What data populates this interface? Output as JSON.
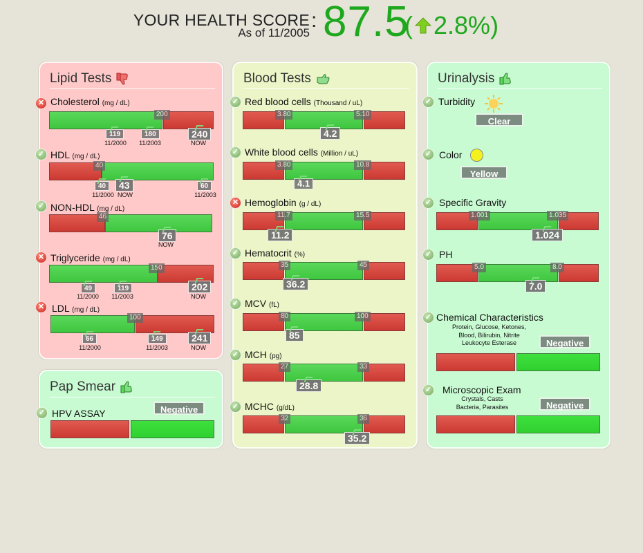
{
  "header": {
    "title": "YOUR HEALTH SCORE",
    "as_of": "As of 11/2005",
    "colon": ":",
    "score": "87.5",
    "change_open": "(",
    "change": "2.8%",
    "change_close": ")",
    "change_direction_icon": "up-arrow-icon"
  },
  "colors": {
    "accent": "#1ea81e",
    "range_ok": "#46ca46",
    "range_bad": "#d4453d",
    "panel_red": "#ffc9c9",
    "panel_yellow": "#ecf5c8",
    "panel_green": "#c9fbd3"
  },
  "lipid": {
    "title": "Lipid Tests",
    "icon": "thumbs-down-icon",
    "tests": [
      {
        "name": "Cholesterol",
        "unit": "(mg / dL)",
        "status": "bad",
        "threshold": "200",
        "values": [
          {
            "v": "119",
            "date": "11/2000"
          },
          {
            "v": "180",
            "date": "11/2003"
          },
          {
            "v": "240",
            "date": "NOW"
          }
        ]
      },
      {
        "name": "HDL",
        "unit": "(mg / dL)",
        "status": "ok",
        "threshold": "40",
        "values": [
          {
            "v": "40",
            "date": "11/2000"
          },
          {
            "v": "43",
            "date": "NOW"
          },
          {
            "v": "60",
            "date": "11/2003"
          }
        ]
      },
      {
        "name": "NON-HDL",
        "unit": "(mg / dL)",
        "status": "ok",
        "threshold": "46",
        "values": [
          {
            "v": "76",
            "date": "NOW"
          }
        ]
      },
      {
        "name": "Triglyceride",
        "unit": "(mg / dL)",
        "status": "bad",
        "threshold": "150",
        "values": [
          {
            "v": "49",
            "date": "11/2000"
          },
          {
            "v": "119",
            "date": "11/2003"
          },
          {
            "v": "202",
            "date": "NOW"
          }
        ]
      },
      {
        "name": "LDL",
        "unit": "(mg / dL)",
        "status": "bad",
        "threshold": "100",
        "values": [
          {
            "v": "66",
            "date": "11/2000"
          },
          {
            "v": "149",
            "date": "11/2003"
          },
          {
            "v": "241",
            "date": "NOW"
          }
        ]
      }
    ]
  },
  "pap": {
    "title": "Pap Smear",
    "icon": "thumbs-up-icon",
    "tests": [
      {
        "name": "HPV ASSAY",
        "status": "ok",
        "result": "Negative"
      }
    ]
  },
  "blood": {
    "title": "Blood Tests",
    "icon": "thumbs-sideways-icon",
    "tests": [
      {
        "name": "Red blood cells",
        "unit": "(Thousand / uL)",
        "status": "ok",
        "low": "3.80",
        "high": "5.10",
        "value": "4.2"
      },
      {
        "name": "White blood cells",
        "unit": "(Million / uL)",
        "status": "ok",
        "low": "3.80",
        "high": "10.8",
        "value": "4.1"
      },
      {
        "name": "Hemoglobin",
        "unit": "(g / dL)",
        "status": "bad",
        "low": "11.7",
        "high": "15.5",
        "value": "11.2"
      },
      {
        "name": "Hematocrit",
        "unit": "(%)",
        "status": "ok",
        "low": "35",
        "high": "45",
        "value": "36.2"
      },
      {
        "name": "MCV",
        "unit": "(fL)",
        "status": "ok",
        "low": "80",
        "high": "100",
        "value": "85"
      },
      {
        "name": "MCH",
        "unit": "(pg)",
        "status": "ok",
        "low": "27",
        "high": "33",
        "value": "28.8"
      },
      {
        "name": "MCHC",
        "unit": "(g/dL)",
        "status": "ok",
        "low": "32",
        "high": "36",
        "value": "35.2"
      }
    ]
  },
  "urine": {
    "title": "Urinalysis",
    "icon": "thumbs-up-icon",
    "turbidity": {
      "name": "Turbidity",
      "icon": "sun-icon",
      "result": "Clear"
    },
    "color": {
      "name": "Color",
      "icon": "yellow-circle-icon",
      "result": "Yellow"
    },
    "gravity": {
      "name": "Specific Gravity",
      "low": "1.001",
      "high": "1.035",
      "value": "1.024"
    },
    "ph": {
      "name": "PH",
      "low": "5.0",
      "high": "8.0",
      "value": "7.0"
    },
    "chemical": {
      "name": "Chemical Characteristics",
      "detail_1": "Protein, Glucose, Ketones,",
      "detail_2": "Blood, Bilirubin, Nitrite",
      "detail_3": "Leukocyte Esterase",
      "result": "Negative"
    },
    "micro": {
      "name": "Microscopic Exam",
      "detail_1": "Crystals, Casts",
      "detail_2": "Bacteria, Parasites",
      "result": "Negative"
    }
  }
}
